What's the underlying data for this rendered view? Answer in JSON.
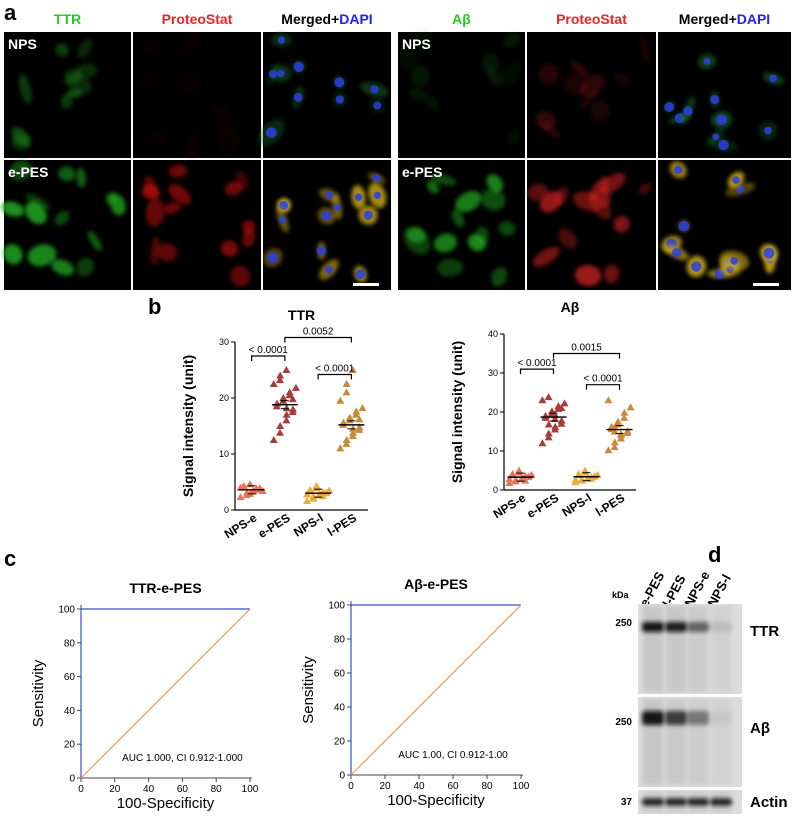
{
  "panels": [
    "a",
    "b",
    "c",
    "d"
  ],
  "microscopy": {
    "groups": [
      {
        "headers": [
          {
            "text": "TTR",
            "color": "#22cc22"
          },
          {
            "text": "ProteoStat",
            "color": "#ee2222"
          },
          {
            "text": "Merged+",
            "color": "#000000",
            "suffix": "DAPI",
            "suffix_color": "#2222ee"
          }
        ],
        "rows": [
          "NPS",
          "e-PES"
        ]
      },
      {
        "headers": [
          {
            "text": "Aβ",
            "color": "#22cc22"
          },
          {
            "text": "ProteoStat",
            "color": "#ee2222"
          },
          {
            "text": "Merged+",
            "color": "#000000",
            "suffix": "DAPI",
            "suffix_color": "#2222ee"
          }
        ],
        "rows": [
          "NPS",
          "e-PES"
        ]
      }
    ]
  },
  "chart_data": [
    {
      "type": "scatter",
      "title": "TTR",
      "ylabel": "Signal intensity (unit)",
      "ylim": [
        0,
        30
      ],
      "yticks": [
        0,
        10,
        20,
        30
      ],
      "categories": [
        "NPS-e",
        "e-PES",
        "NPS-l",
        "l-PES"
      ],
      "colors": [
        "#e8735a",
        "#a63c3c",
        "#f2a93b",
        "#c9893a"
      ],
      "means": [
        3.6,
        18.8,
        3.0,
        15.2
      ],
      "points": [
        [
          2.3,
          2.7,
          3.1,
          3.3,
          3.5,
          3.7,
          3.9,
          4.1,
          4.3,
          4.6,
          2.9,
          3.6,
          3.8,
          3.4,
          4.0
        ],
        [
          12.5,
          13.8,
          15.0,
          16.0,
          17.0,
          17.5,
          18.0,
          18.5,
          19.0,
          19.5,
          20.0,
          20.5,
          21.0,
          21.8,
          22.5,
          23.2,
          24.0,
          25.0,
          18.2,
          19.8
        ],
        [
          1.6,
          2.0,
          2.4,
          2.7,
          2.9,
          3.0,
          3.1,
          3.3,
          3.6,
          3.9,
          4.3,
          2.5,
          3.2,
          3.5,
          2.8
        ],
        [
          11.0,
          11.8,
          12.5,
          13.2,
          13.8,
          14.3,
          14.8,
          15.2,
          15.6,
          16.0,
          16.5,
          17.0,
          17.6,
          18.2,
          19.5,
          21.0,
          22.5,
          25.0,
          14.5,
          16.2
        ]
      ],
      "comparisons": [
        {
          "from": 0,
          "to": 1,
          "y": 27.5,
          "label": "< 0.0001"
        },
        {
          "from": 1,
          "to": 3,
          "y": 30.8,
          "label": "0.0052"
        },
        {
          "from": 2,
          "to": 3,
          "y": 24.2,
          "label": "< 0.0001"
        }
      ]
    },
    {
      "type": "scatter",
      "title": "Aβ",
      "ylabel": "Signal intensity (unit)",
      "ylim": [
        0,
        40
      ],
      "yticks": [
        0,
        10,
        20,
        30,
        40
      ],
      "categories": [
        "NPS-e",
        "e-PES",
        "NPS-l",
        "l-PES"
      ],
      "colors": [
        "#e8735a",
        "#a63c3c",
        "#f2a93b",
        "#c9893a"
      ],
      "means": [
        3.3,
        18.7,
        3.4,
        15.5
      ],
      "points": [
        [
          1.8,
          2.2,
          2.6,
          2.9,
          3.1,
          3.3,
          3.5,
          3.8,
          4.1,
          4.5,
          5.0,
          2.4,
          3.6,
          3.9,
          2.8
        ],
        [
          12.0,
          13.5,
          14.5,
          15.5,
          16.2,
          17.0,
          17.8,
          18.5,
          19.0,
          19.6,
          20.2,
          20.8,
          21.5,
          22.2,
          23.0,
          23.8,
          16.8,
          18.2,
          19.2,
          21.0
        ],
        [
          2.0,
          2.4,
          2.7,
          3.0,
          3.2,
          3.4,
          3.6,
          3.8,
          4.1,
          4.5,
          5.0,
          2.9,
          3.3,
          3.9,
          2.6
        ],
        [
          10.2,
          11.0,
          12.2,
          13.2,
          14.0,
          14.6,
          15.1,
          15.6,
          16.2,
          16.8,
          17.5,
          18.5,
          19.8,
          21.2,
          23.0,
          15.0,
          16.0,
          14.4
        ]
      ],
      "comparisons": [
        {
          "from": 0,
          "to": 1,
          "y": 31.0,
          "label": "< 0.0001"
        },
        {
          "from": 1,
          "to": 3,
          "y": 35.0,
          "label": "0.0015"
        },
        {
          "from": 2,
          "to": 3,
          "y": 27.0,
          "label": "< 0.0001"
        }
      ]
    },
    {
      "type": "line",
      "title": "TTR-e-PES",
      "xlabel": "100-Specificity",
      "ylabel": "Sensitivity",
      "xlim": [
        0,
        100
      ],
      "ylim": [
        0,
        100
      ],
      "ticks": [
        0,
        20,
        40,
        60,
        80,
        100
      ],
      "series": [
        {
          "x": [
            0,
            0,
            100
          ],
          "y": [
            0,
            100,
            100
          ],
          "color": "#3b4bd6"
        },
        {
          "x": [
            0,
            100
          ],
          "y": [
            0,
            100
          ],
          "color": "#e39a5a"
        }
      ],
      "annotation": "AUC 1.000, CI 0.912-1.000"
    },
    {
      "type": "line",
      "title": "Aβ-e-PES",
      "xlabel": "100-Specificity",
      "ylabel": "Sensitivity",
      "xlim": [
        0,
        100
      ],
      "ylim": [
        0,
        100
      ],
      "ticks": [
        0,
        20,
        40,
        60,
        80,
        100
      ],
      "series": [
        {
          "x": [
            0,
            0,
            100
          ],
          "y": [
            0,
            100,
            100
          ],
          "color": "#3b4bd6"
        },
        {
          "x": [
            0,
            100
          ],
          "y": [
            0,
            100
          ],
          "color": "#e39a5a"
        }
      ],
      "annotation": "AUC 1.00, CI 0.912-1.00"
    }
  ],
  "western": {
    "kda_label": "kDa",
    "lanes": [
      "e-PES",
      "l-PES",
      "NPS-e",
      "NPS-l"
    ],
    "blots": [
      {
        "marker": "250",
        "label": "TTR",
        "intensity": [
          0.95,
          0.9,
          0.55,
          0.1
        ]
      },
      {
        "marker": "250",
        "label": "Aβ",
        "intensity": [
          0.95,
          0.75,
          0.45,
          0.05
        ]
      },
      {
        "marker": "37",
        "label": "Actin",
        "intensity": [
          0.9,
          0.9,
          0.9,
          0.9
        ]
      }
    ]
  }
}
